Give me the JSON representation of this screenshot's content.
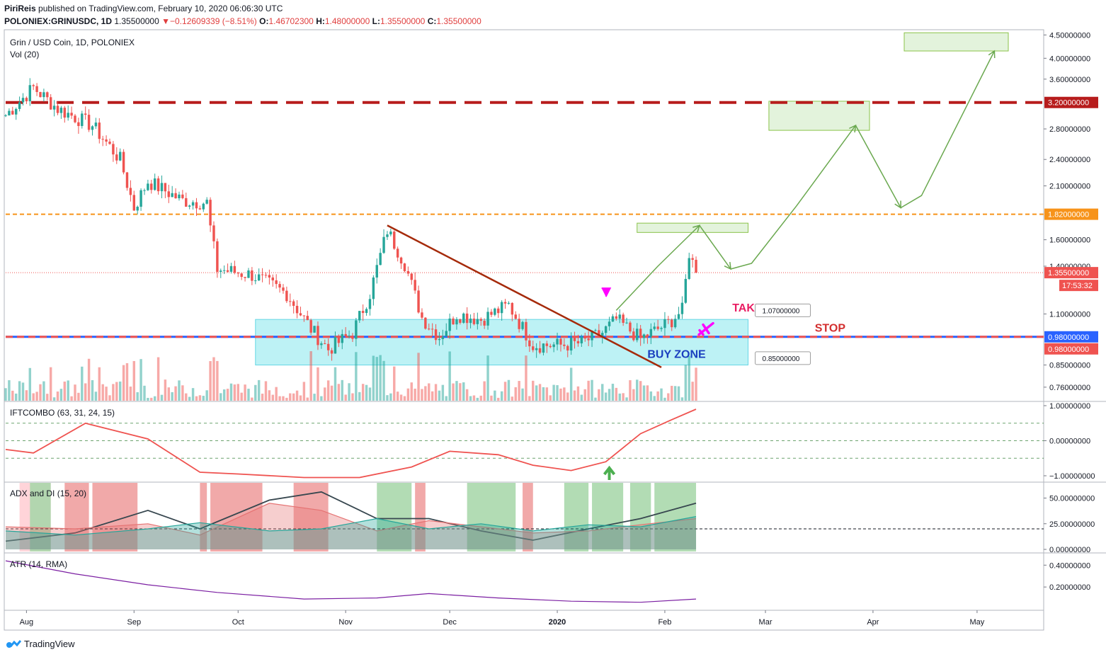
{
  "header": {
    "publisher": "PiriReis",
    "published_text": "published on TradingView.com, February 10, 2020 06:06:30 UTC",
    "symbol": "POLONIEX:GRINUSDC, 1D",
    "last": "1.35500000",
    "change": "−0.12609339 (−8.51%)",
    "o_label": "O:",
    "o": "1.46702300",
    "h_label": "H:",
    "h": "1.48000000",
    "l_label": "L:",
    "l": "1.35500000",
    "c_label": "C:",
    "c": "1.35500000"
  },
  "footer": {
    "brand": "TradingView"
  },
  "colors": {
    "up": "#26a69a",
    "down": "#ef5350",
    "resistance": "#b71c1c",
    "level_orange": "#f7931a",
    "buyzone_fill": "#b2f0f4",
    "target_fill": "#e3f3dc",
    "arrow_green": "#6aa84f",
    "annot_pink": "#e91e63",
    "plane": "#ff00ff",
    "annot_blue": "#1a3fbf",
    "annot_red": "#d32f2f"
  },
  "chart_data": [
    {
      "type": "candlestick",
      "title": "Grin / USD Coin, 1D, POLONIEX",
      "volume_label": "Vol (20)",
      "price_axis_labels": [
        "4.50000000",
        "4.00000000",
        "3.60000000",
        "3.20000000",
        "2.80000000",
        "2.40000000",
        "2.10000000",
        "1.82000000",
        "1.60000000",
        "1.40000000",
        "1.35500000",
        "1.10000000",
        "0.98000000",
        "0.98000000",
        "0.85000000",
        "0.76000000"
      ],
      "time_axis_labels": [
        "Aug",
        "Sep",
        "Oct",
        "Nov",
        "Dec",
        "2020",
        "Jan",
        "Feb",
        "Mar",
        "Apr",
        "May"
      ],
      "countdown": "17:53:32",
      "levels": {
        "resistance": 3.2,
        "orange_level": 1.82,
        "last_price": 1.355,
        "stop": 0.98,
        "buy_zone_top": 1.07,
        "buy_zone_bottom": 0.85
      },
      "annotations": {
        "take_off": "TAKE OFF",
        "stop": "STOP",
        "buy_zone": "BUY ZONE",
        "callout_top": "1.07000000",
        "callout_bottom": "0.85000000"
      },
      "keypoints_close": [
        [
          "2019-07-26",
          3.0
        ],
        [
          "2019-08-03",
          3.45
        ],
        [
          "2019-08-10",
          3.1
        ],
        [
          "2019-08-20",
          2.85
        ],
        [
          "2019-08-28",
          2.4
        ],
        [
          "2019-09-01",
          1.88
        ],
        [
          "2019-09-05",
          2.15
        ],
        [
          "2019-09-15",
          1.95
        ],
        [
          "2019-09-22",
          1.93
        ],
        [
          "2019-09-23",
          1.7
        ],
        [
          "2019-09-25",
          1.38
        ],
        [
          "2019-10-05",
          1.34
        ],
        [
          "2019-10-15",
          1.22
        ],
        [
          "2019-10-22",
          1.02
        ],
        [
          "2019-10-27",
          0.92
        ],
        [
          "2019-11-03",
          1.0
        ],
        [
          "2019-11-08",
          1.22
        ],
        [
          "2019-11-13",
          1.68
        ],
        [
          "2019-11-18",
          1.42
        ],
        [
          "2019-11-23",
          1.08
        ],
        [
          "2019-11-28",
          0.98
        ],
        [
          "2019-12-03",
          1.1
        ],
        [
          "2019-12-10",
          1.07
        ],
        [
          "2019-12-18",
          1.15
        ],
        [
          "2019-12-25",
          0.94
        ],
        [
          "2020-01-02",
          0.94
        ],
        [
          "2020-01-08",
          0.95
        ],
        [
          "2020-01-14",
          1.0
        ],
        [
          "2020-01-18",
          1.07
        ],
        [
          "2020-01-25",
          0.97
        ],
        [
          "2020-02-02",
          1.05
        ],
        [
          "2020-02-06",
          1.12
        ],
        [
          "2020-02-08",
          1.5
        ],
        [
          "2020-02-10",
          1.355
        ]
      ]
    },
    {
      "type": "line",
      "title": "IFTCOMBO (63, 31, 24, 15)",
      "y_axis_labels": [
        "1.00000000",
        "0.00000000",
        "−1.00000000"
      ],
      "x": [
        "2019-07-26",
        "2019-08-03",
        "2019-08-18",
        "2019-09-05",
        "2019-09-20",
        "2019-10-01",
        "2019-10-20",
        "2019-11-05",
        "2019-11-20",
        "2019-12-01",
        "2019-12-15",
        "2019-12-25",
        "2020-01-05",
        "2020-01-15",
        "2020-01-25",
        "2020-02-03",
        "2020-02-10"
      ],
      "values": [
        -0.25,
        -0.35,
        0.5,
        0.05,
        -0.9,
        -0.95,
        -1.05,
        -1.05,
        -0.75,
        -0.3,
        -0.4,
        -0.7,
        -0.85,
        -0.6,
        0.2,
        0.6,
        0.9
      ]
    },
    {
      "type": "line",
      "title": "ADX and DI (15, 20)",
      "y_axis_labels": [
        "50.00000000",
        "25.00000000",
        "0.00000000"
      ],
      "x": [
        "2019-07-26",
        "2019-08-15",
        "2019-09-05",
        "2019-09-20",
        "2019-10-10",
        "2019-10-25",
        "2019-11-10",
        "2019-11-25",
        "2019-12-10",
        "2019-12-25",
        "2020-01-10",
        "2020-01-25",
        "2020-02-10"
      ],
      "series": [
        {
          "values": [
            8,
            16,
            38,
            20,
            48,
            56,
            30,
            30,
            18,
            9,
            20,
            30,
            45
          ]
        },
        {
          "values": [
            22,
            20,
            25,
            14,
            45,
            38,
            18,
            28,
            22,
            16,
            18,
            24,
            30
          ]
        },
        {
          "values": [
            18,
            14,
            20,
            26,
            18,
            20,
            30,
            20,
            25,
            18,
            24,
            22,
            32
          ]
        }
      ]
    },
    {
      "type": "line",
      "title": "ATR (14, RMA)",
      "y_axis_labels": [
        "0.40000000",
        "0.20000000"
      ],
      "x": [
        "2019-07-26",
        "2019-08-15",
        "2019-09-05",
        "2019-09-25",
        "2019-10-20",
        "2019-11-10",
        "2019-11-25",
        "2019-12-15",
        "2020-01-05",
        "2020-01-25",
        "2020-02-10"
      ],
      "values": [
        0.44,
        0.32,
        0.22,
        0.15,
        0.09,
        0.1,
        0.14,
        0.1,
        0.07,
        0.06,
        0.09
      ]
    }
  ]
}
